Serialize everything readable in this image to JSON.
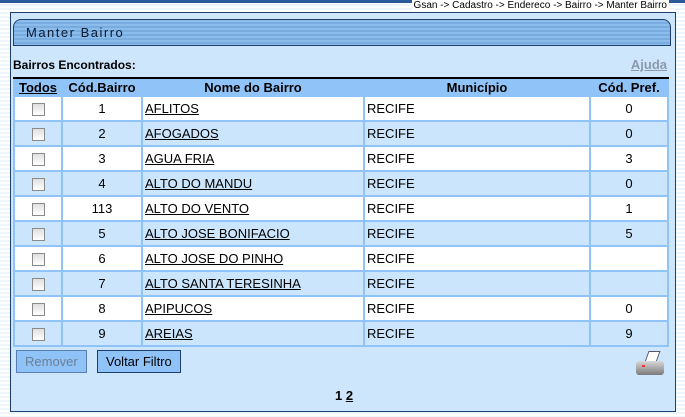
{
  "breadcrumb": "Gsan -> Cadastro -> Endereco -> Bairro -> Manter Bairro",
  "title": "Manter Bairro",
  "found_label": "Bairros Encontrados:",
  "help_link": "Ajuda",
  "columns": {
    "todos": "Todos",
    "cod": "Cód.Bairro",
    "nome": "Nome do Bairro",
    "municipio": "Município",
    "pref": "Cód. Pref."
  },
  "rows": [
    {
      "cod": "1",
      "nome": "AFLITOS",
      "municipio": "RECIFE",
      "pref": "0"
    },
    {
      "cod": "2",
      "nome": "AFOGADOS",
      "municipio": "RECIFE",
      "pref": "0"
    },
    {
      "cod": "3",
      "nome": "AGUA FRIA",
      "municipio": "RECIFE",
      "pref": "3"
    },
    {
      "cod": "4",
      "nome": "ALTO DO MANDU",
      "municipio": "RECIFE",
      "pref": "0"
    },
    {
      "cod": "113",
      "nome": "ALTO DO VENTO",
      "municipio": "RECIFE",
      "pref": "1"
    },
    {
      "cod": "5",
      "nome": "ALTO JOSE BONIFACIO",
      "municipio": "RECIFE",
      "pref": "5"
    },
    {
      "cod": "6",
      "nome": "ALTO JOSE DO PINHO",
      "municipio": "RECIFE",
      "pref": ""
    },
    {
      "cod": "7",
      "nome": "ALTO SANTA TERESINHA",
      "municipio": "RECIFE",
      "pref": ""
    },
    {
      "cod": "8",
      "nome": "APIPUCOS",
      "municipio": "RECIFE",
      "pref": "0"
    },
    {
      "cod": "9",
      "nome": "AREIAS",
      "municipio": "RECIFE",
      "pref": "9"
    }
  ],
  "buttons": {
    "remove": "Remover",
    "back_filter": "Voltar Filtro"
  },
  "print_icon": "printer-icon",
  "pagination": {
    "current": "1",
    "pages": [
      "2"
    ]
  }
}
